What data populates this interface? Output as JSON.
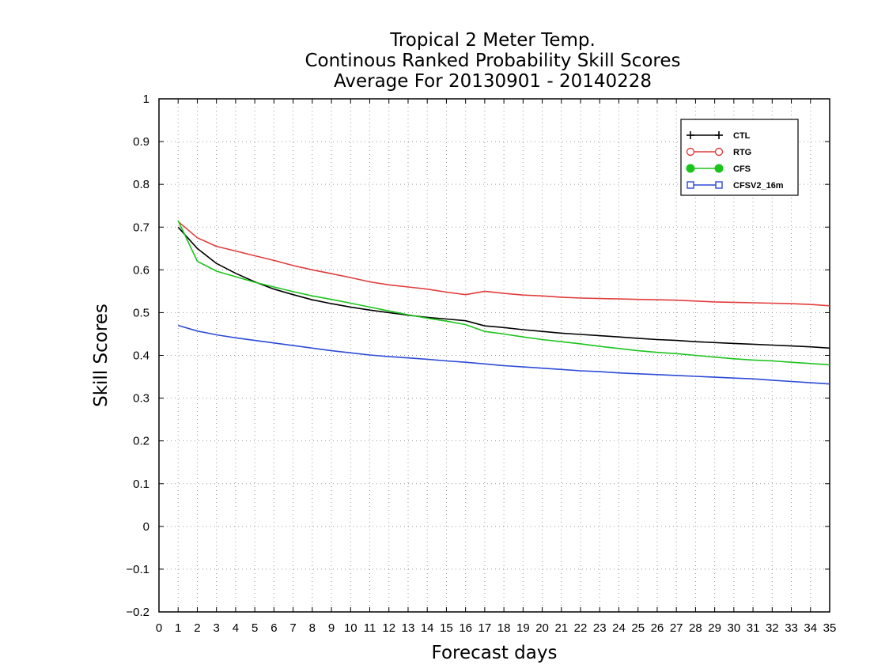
{
  "chart_data": {
    "type": "line",
    "title_lines": [
      "Tropical 2 Meter Temp.",
      "Continous Ranked Probability Skill Scores",
      "Average For 20130901 - 20140228"
    ],
    "xlabel": "Forecast days",
    "ylabel": "Skill Scores",
    "xlim": [
      0,
      35
    ],
    "ylim": [
      -0.2,
      1
    ],
    "x_ticks": [
      0,
      1,
      2,
      3,
      4,
      5,
      6,
      7,
      8,
      9,
      10,
      11,
      12,
      13,
      14,
      15,
      16,
      17,
      18,
      19,
      20,
      21,
      22,
      23,
      24,
      25,
      26,
      27,
      28,
      29,
      30,
      31,
      32,
      33,
      34,
      35
    ],
    "y_ticks": [
      -0.2,
      -0.1,
      0,
      0.1,
      0.2,
      0.3,
      0.4,
      0.5,
      0.6,
      0.7,
      0.8,
      0.9,
      1
    ],
    "y_tick_labels": [
      "−0.2",
      "−0.1",
      "0",
      "0.1",
      "0.2",
      "0.3",
      "0.4",
      "0.5",
      "0.6",
      "0.7",
      "0.8",
      "0.9",
      "1"
    ],
    "grid": true,
    "legend_position": "top-right",
    "x": [
      1,
      2,
      3,
      4,
      5,
      6,
      7,
      8,
      9,
      10,
      11,
      12,
      13,
      14,
      15,
      16,
      17,
      18,
      19,
      20,
      21,
      22,
      23,
      24,
      25,
      26,
      27,
      28,
      29,
      30,
      31,
      32,
      33,
      34,
      35
    ],
    "series": [
      {
        "name": "CTL",
        "color": "#000000",
        "marker": "plus",
        "values": [
          0.7,
          0.65,
          0.615,
          0.592,
          0.572,
          0.555,
          0.542,
          0.53,
          0.521,
          0.513,
          0.506,
          0.5,
          0.494,
          0.489,
          0.485,
          0.481,
          0.469,
          0.465,
          0.46,
          0.456,
          0.452,
          0.449,
          0.446,
          0.443,
          0.44,
          0.437,
          0.435,
          0.432,
          0.43,
          0.428,
          0.426,
          0.424,
          0.422,
          0.42,
          0.417
        ]
      },
      {
        "name": "RTG",
        "color": "#e23c3c",
        "marker": "open-circle",
        "values": [
          0.713,
          0.675,
          0.655,
          0.644,
          0.633,
          0.622,
          0.61,
          0.6,
          0.591,
          0.582,
          0.572,
          0.565,
          0.56,
          0.555,
          0.548,
          0.542,
          0.55,
          0.545,
          0.541,
          0.539,
          0.536,
          0.534,
          0.533,
          0.532,
          0.531,
          0.53,
          0.529,
          0.527,
          0.525,
          0.524,
          0.523,
          0.522,
          0.521,
          0.519,
          0.516
        ]
      },
      {
        "name": "CFS",
        "color": "#1bc41b",
        "marker": "filled-circle",
        "values": [
          0.715,
          0.62,
          0.597,
          0.584,
          0.571,
          0.56,
          0.549,
          0.539,
          0.531,
          0.522,
          0.513,
          0.504,
          0.495,
          0.487,
          0.48,
          0.472,
          0.456,
          0.45,
          0.443,
          0.437,
          0.432,
          0.427,
          0.421,
          0.416,
          0.411,
          0.407,
          0.404,
          0.4,
          0.396,
          0.392,
          0.389,
          0.387,
          0.384,
          0.381,
          0.378
        ]
      },
      {
        "name": "CFSV2_16m",
        "color": "#2c4bd6",
        "marker": "open-square",
        "values": [
          0.47,
          0.457,
          0.448,
          0.441,
          0.435,
          0.429,
          0.423,
          0.417,
          0.411,
          0.406,
          0.401,
          0.397,
          0.394,
          0.391,
          0.387,
          0.384,
          0.38,
          0.376,
          0.373,
          0.37,
          0.367,
          0.364,
          0.362,
          0.359,
          0.357,
          0.355,
          0.353,
          0.351,
          0.349,
          0.347,
          0.345,
          0.342,
          0.339,
          0.336,
          0.333
        ]
      }
    ]
  }
}
